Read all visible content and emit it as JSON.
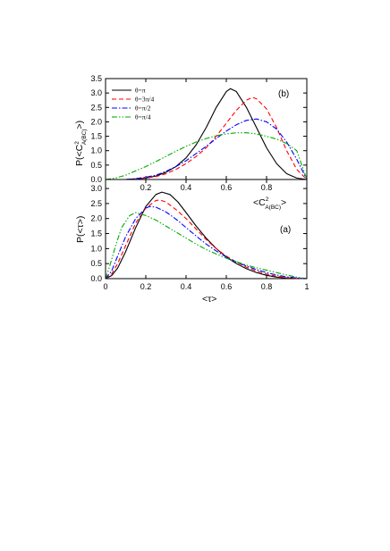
{
  "chart_data": [
    {
      "type": "line",
      "panel_label": "(b)",
      "ylabel": "P(<C",
      "ylabel_sup": "2",
      "ylabel_sub": "A(BC)",
      "ylabel_end": ">)",
      "xlabel": "<C",
      "xlabel_sup": "2",
      "xlabel_sub": "A(BC)",
      "xlabel_end": ">",
      "xlim": [
        0,
        1
      ],
      "ylim": [
        0,
        3.5
      ],
      "x_ticks": [
        "0.2",
        "0.4",
        "0.6",
        "0.8"
      ],
      "x_tick_values": [
        0.2,
        0.4,
        0.6,
        0.8
      ],
      "y_ticks": [
        "0.0",
        "0.5",
        "1.0",
        "1.5",
        "2.0",
        "2.5",
        "3.0",
        "3.5"
      ],
      "y_tick_values": [
        0,
        0.5,
        1.0,
        1.5,
        2.0,
        2.5,
        3.0,
        3.5
      ],
      "legend_position": "top-left",
      "grid": false,
      "series": [
        {
          "name": "θ=π",
          "color": "#000000",
          "dash": "solid",
          "x": [
            0.0,
            0.05,
            0.1,
            0.15,
            0.2,
            0.25,
            0.3,
            0.35,
            0.4,
            0.45,
            0.5,
            0.55,
            0.6,
            0.62,
            0.65,
            0.7,
            0.75,
            0.8,
            0.85,
            0.9,
            0.95,
            1.0
          ],
          "y": [
            0.0,
            0.0,
            0.0,
            0.02,
            0.05,
            0.12,
            0.25,
            0.45,
            0.75,
            1.2,
            1.8,
            2.5,
            3.05,
            3.15,
            3.05,
            2.5,
            1.8,
            1.1,
            0.55,
            0.2,
            0.05,
            0.0
          ]
        },
        {
          "name": "θ=3π/4",
          "color": "#ff0000",
          "dash": "dashed",
          "x": [
            0.0,
            0.1,
            0.15,
            0.2,
            0.25,
            0.3,
            0.35,
            0.4,
            0.45,
            0.5,
            0.55,
            0.6,
            0.65,
            0.7,
            0.73,
            0.75,
            0.8,
            0.85,
            0.9,
            0.95,
            1.0
          ],
          "y": [
            0.0,
            0.0,
            0.02,
            0.05,
            0.1,
            0.2,
            0.35,
            0.55,
            0.8,
            1.1,
            1.5,
            1.95,
            2.4,
            2.75,
            2.85,
            2.8,
            2.45,
            1.8,
            1.0,
            0.35,
            0.0
          ]
        },
        {
          "name": "θ=π/2",
          "color": "#0000ff",
          "dash": "dashdot",
          "x": [
            0.0,
            0.1,
            0.15,
            0.2,
            0.25,
            0.3,
            0.35,
            0.4,
            0.45,
            0.5,
            0.55,
            0.6,
            0.65,
            0.7,
            0.75,
            0.8,
            0.85,
            0.9,
            0.95,
            1.0
          ],
          "y": [
            0.0,
            0.0,
            0.03,
            0.08,
            0.15,
            0.28,
            0.45,
            0.65,
            0.9,
            1.15,
            1.42,
            1.68,
            1.9,
            2.05,
            2.1,
            2.0,
            1.75,
            1.3,
            0.7,
            0.0
          ]
        },
        {
          "name": "θ=π/4",
          "color": "#00aa00",
          "dash": "dashdotdot",
          "x": [
            0.0,
            0.05,
            0.1,
            0.15,
            0.2,
            0.25,
            0.3,
            0.35,
            0.4,
            0.45,
            0.5,
            0.55,
            0.6,
            0.65,
            0.7,
            0.75,
            0.8,
            0.85,
            0.9,
            0.95,
            1.0
          ],
          "y": [
            0.0,
            0.05,
            0.15,
            0.3,
            0.45,
            0.62,
            0.8,
            0.98,
            1.15,
            1.3,
            1.42,
            1.52,
            1.58,
            1.62,
            1.62,
            1.58,
            1.5,
            1.4,
            1.25,
            1.0,
            0.0
          ]
        }
      ]
    },
    {
      "type": "line",
      "panel_label": "(a)",
      "ylabel": "P(<τ>)",
      "xlabel": "<τ>",
      "xlim": [
        0,
        1
      ],
      "ylim": [
        0,
        3.3
      ],
      "x_ticks": [
        "0",
        "0.2",
        "0.4",
        "0.6",
        "0.8",
        "1"
      ],
      "x_tick_values": [
        0,
        0.2,
        0.4,
        0.6,
        0.8,
        1
      ],
      "y_ticks": [
        "0.0",
        "0.5",
        "1.0",
        "1.5",
        "2.0",
        "2.5",
        "3.0"
      ],
      "y_tick_values": [
        0,
        0.5,
        1.0,
        1.5,
        2.0,
        2.5,
        3.0
      ],
      "grid": false,
      "series": [
        {
          "name": "θ=π",
          "color": "#000000",
          "dash": "solid",
          "x": [
            0.0,
            0.03,
            0.06,
            0.1,
            0.15,
            0.2,
            0.25,
            0.28,
            0.32,
            0.36,
            0.4,
            0.45,
            0.5,
            0.55,
            0.6,
            0.65,
            0.7,
            0.75,
            0.8,
            0.85,
            0.9,
            0.95,
            1.0
          ],
          "y": [
            0.0,
            0.1,
            0.35,
            0.9,
            1.7,
            2.4,
            2.8,
            2.88,
            2.8,
            2.55,
            2.2,
            1.75,
            1.35,
            1.0,
            0.72,
            0.5,
            0.33,
            0.2,
            0.11,
            0.05,
            0.02,
            0.0,
            0.0
          ]
        },
        {
          "name": "θ=3π/4",
          "color": "#ff0000",
          "dash": "dashed",
          "x": [
            0.0,
            0.03,
            0.06,
            0.1,
            0.15,
            0.2,
            0.25,
            0.27,
            0.3,
            0.35,
            0.4,
            0.45,
            0.5,
            0.55,
            0.6,
            0.65,
            0.7,
            0.75,
            0.8,
            0.85,
            0.9,
            0.95,
            1.0
          ],
          "y": [
            0.0,
            0.15,
            0.5,
            1.1,
            1.85,
            2.35,
            2.6,
            2.62,
            2.55,
            2.3,
            2.0,
            1.65,
            1.3,
            1.0,
            0.75,
            0.55,
            0.38,
            0.25,
            0.15,
            0.08,
            0.03,
            0.01,
            0.0
          ]
        },
        {
          "name": "θ=π/2",
          "color": "#0000ff",
          "dash": "dashdot",
          "x": [
            0.0,
            0.03,
            0.06,
            0.1,
            0.15,
            0.2,
            0.22,
            0.25,
            0.3,
            0.35,
            0.4,
            0.45,
            0.5,
            0.55,
            0.6,
            0.65,
            0.7,
            0.75,
            0.8,
            0.85,
            0.9,
            0.95,
            1.0
          ],
          "y": [
            0.0,
            0.25,
            0.75,
            1.4,
            2.0,
            2.35,
            2.4,
            2.38,
            2.22,
            1.98,
            1.7,
            1.42,
            1.15,
            0.92,
            0.72,
            0.55,
            0.42,
            0.3,
            0.2,
            0.12,
            0.06,
            0.02,
            0.0
          ]
        },
        {
          "name": "θ=π/4",
          "color": "#00aa00",
          "dash": "dashdotdot",
          "x": [
            0.0,
            0.02,
            0.05,
            0.08,
            0.12,
            0.15,
            0.2,
            0.25,
            0.3,
            0.35,
            0.4,
            0.45,
            0.5,
            0.55,
            0.6,
            0.65,
            0.7,
            0.75,
            0.8,
            0.85,
            0.9,
            0.95,
            1.0
          ],
          "y": [
            0.0,
            0.4,
            1.1,
            1.7,
            2.1,
            2.2,
            2.1,
            1.95,
            1.75,
            1.55,
            1.35,
            1.15,
            0.97,
            0.82,
            0.68,
            0.56,
            0.45,
            0.36,
            0.28,
            0.2,
            0.12,
            0.05,
            0.0
          ]
        }
      ]
    }
  ]
}
